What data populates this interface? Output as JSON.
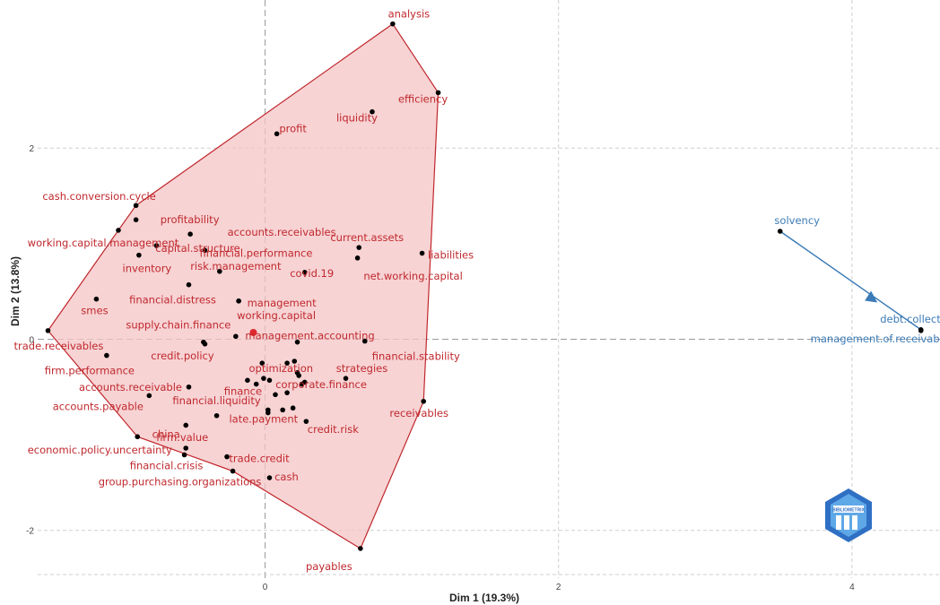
{
  "chart_data": {
    "type": "scatter",
    "xlabel": "Dim 1 (19.3%)",
    "ylabel": "Dim 2 (13.8%)",
    "xlim": [
      -1.55,
      4.6
    ],
    "ylim": [
      -2.5,
      3.55
    ],
    "xticks": [
      0,
      2,
      4
    ],
    "yticks": [
      -2,
      0,
      2
    ],
    "colors": {
      "cluster1": "#c0282d",
      "cluster1_fill": "#f4c4c6",
      "cluster2": "#3b7bb7",
      "centroid": "#e0282d",
      "point": "#000000"
    },
    "clusters": [
      {
        "id": 1,
        "color_key": "cluster1",
        "hull": [
          "analysis",
          "efficiency",
          "receivables",
          "payables",
          "group.purchasing.organizations",
          "economic.policy.uncertainty",
          "trade.receivables",
          "working.capital.management",
          "cash.conversion.cycle"
        ],
        "centroid": {
          "x": -0.08,
          "y": 0.07
        },
        "points": [
          {
            "label": "analysis",
            "x": 0.87,
            "y": 3.3
          },
          {
            "label": "efficiency",
            "x": 1.18,
            "y": 2.58
          },
          {
            "label": "liquidity",
            "x": 0.73,
            "y": 2.38
          },
          {
            "label": "profit",
            "x": 0.08,
            "y": 2.15
          },
          {
            "label": "cash.conversion.cycle",
            "x": -0.88,
            "y": 1.4
          },
          {
            "label": "profitability",
            "x": -0.88,
            "y": 1.25
          },
          {
            "label": "capital.structure",
            "x": -0.74,
            "y": 0.98
          },
          {
            "label": "working.capital.management",
            "x": -1.0,
            "y": 1.14
          },
          {
            "label": "accounts.receivables",
            "x": -0.51,
            "y": 1.1
          },
          {
            "label": "financial.performance",
            "x": -0.41,
            "y": 0.93
          },
          {
            "label": "inventory",
            "x": -0.86,
            "y": 0.88
          },
          {
            "label": "risk.management",
            "x": -0.31,
            "y": 0.71
          },
          {
            "label": "current.assets",
            "x": 0.64,
            "y": 0.96
          },
          {
            "label": "liabilities",
            "x": 1.07,
            "y": 0.9
          },
          {
            "label": "net.working.capital",
            "x": 0.63,
            "y": 0.85
          },
          {
            "label": "covid.19",
            "x": 0.27,
            "y": 0.7
          },
          {
            "label": "financial.distress",
            "x": -0.52,
            "y": 0.57
          },
          {
            "label": "management",
            "x": -0.18,
            "y": 0.4
          },
          {
            "label": "smes",
            "x": -1.15,
            "y": 0.42
          },
          {
            "label": "working.capital",
            "x": -0.18,
            "y": 0.4
          },
          {
            "label": "supply.chain.finance",
            "x": -0.2,
            "y": 0.03
          },
          {
            "label": "management.accounting",
            "x": 0.22,
            "y": -0.03
          },
          {
            "label": "trade.receivables",
            "x": -1.48,
            "y": 0.09
          },
          {
            "label": "credit.policy",
            "x": -0.41,
            "y": -0.05
          },
          {
            "label": "optimization",
            "x": -0.02,
            "y": -0.25
          },
          {
            "label": "financial.stability",
            "x": 0.68,
            "y": -0.02
          },
          {
            "label": "firm.performance",
            "x": -1.08,
            "y": -0.17
          },
          {
            "label": "finance",
            "x": -0.12,
            "y": -0.43
          },
          {
            "label": "strategies",
            "x": 0.55,
            "y": -0.41
          },
          {
            "label": "accounts.receivable",
            "x": -0.52,
            "y": -0.5
          },
          {
            "label": "corporate.finance",
            "x": 0.15,
            "y": -0.56
          },
          {
            "label": "accounts.payable",
            "x": -0.79,
            "y": -0.59
          },
          {
            "label": "financial.liquidity",
            "x": -0.33,
            "y": -0.8
          },
          {
            "label": "late.payment",
            "x": 0.02,
            "y": -0.74
          },
          {
            "label": "receivables",
            "x": 1.08,
            "y": -0.65
          },
          {
            "label": "china",
            "x": -0.54,
            "y": -0.9
          },
          {
            "label": "credit.risk",
            "x": 0.28,
            "y": -0.86
          },
          {
            "label": "economic.policy.uncertainty",
            "x": -0.87,
            "y": -1.02
          },
          {
            "label": "firm.value",
            "x": -0.54,
            "y": -1.14
          },
          {
            "label": "financial.crisis",
            "x": -0.55,
            "y": -1.21
          },
          {
            "label": "trade.credit",
            "x": -0.26,
            "y": -1.23
          },
          {
            "label": "group.purchasing.organizations",
            "x": -0.22,
            "y": -1.38
          },
          {
            "label": "cash",
            "x": 0.03,
            "y": -1.45
          },
          {
            "label": "payables",
            "x": 0.65,
            "y": -2.19
          }
        ],
        "extra_points": [
          {
            "x": -0.01,
            "y": -0.41
          },
          {
            "x": 0.03,
            "y": -0.43
          },
          {
            "x": -0.06,
            "y": -0.47
          },
          {
            "x": 0.07,
            "y": -0.58
          },
          {
            "x": 0.19,
            "y": -0.72
          },
          {
            "x": 0.12,
            "y": -0.74
          },
          {
            "x": 0.02,
            "y": -0.77
          },
          {
            "x": 0.22,
            "y": -0.35
          },
          {
            "x": 0.23,
            "y": -0.38
          },
          {
            "x": 0.27,
            "y": -0.45
          },
          {
            "x": 0.25,
            "y": -0.47
          },
          {
            "x": 0.2,
            "y": -0.23
          },
          {
            "x": 0.15,
            "y": -0.25
          },
          {
            "x": -0.42,
            "y": -0.03
          }
        ]
      },
      {
        "id": 2,
        "color_key": "cluster2",
        "hull": [
          "solvency",
          "debt.collection"
        ],
        "centroid": {
          "x": 4.13,
          "y": 0.44
        },
        "points": [
          {
            "label": "solvency",
            "x": 3.51,
            "y": 1.13
          },
          {
            "label": "debt.collection",
            "x": 4.47,
            "y": 0.1
          },
          {
            "label": "management.of.receivables",
            "x": 4.47,
            "y": 0.09
          }
        ],
        "extra_points": []
      }
    ]
  },
  "logo": {
    "text": "BIBLIOMETRIX",
    "icon": "bibliometrix-logo-icon"
  }
}
